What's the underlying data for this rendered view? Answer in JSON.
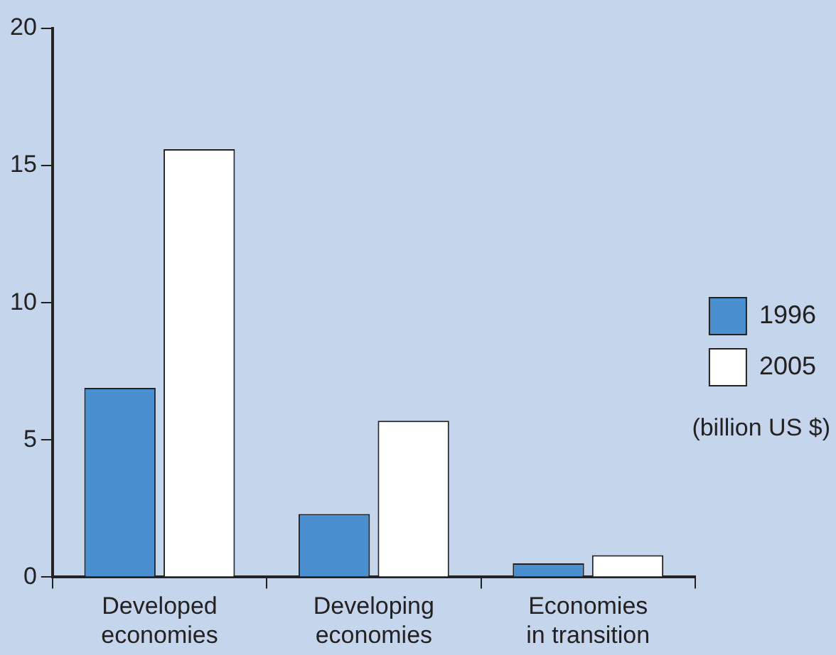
{
  "chart_data": {
    "type": "bar",
    "categories": [
      "Developed economies",
      "Developing economies",
      "Economies in transition"
    ],
    "series": [
      {
        "name": "1996",
        "color": "#4a8fd0",
        "values": [
          6.9,
          2.3,
          0.5
        ]
      },
      {
        "name": "2005",
        "color": "#ffffff",
        "values": [
          15.6,
          5.7,
          0.8
        ]
      }
    ],
    "ylim": [
      0,
      20
    ],
    "yticks": [
      0,
      5,
      10,
      15,
      20
    ],
    "grid": false,
    "legend": "right",
    "annotations": [
      "(billion US $)"
    ]
  }
}
